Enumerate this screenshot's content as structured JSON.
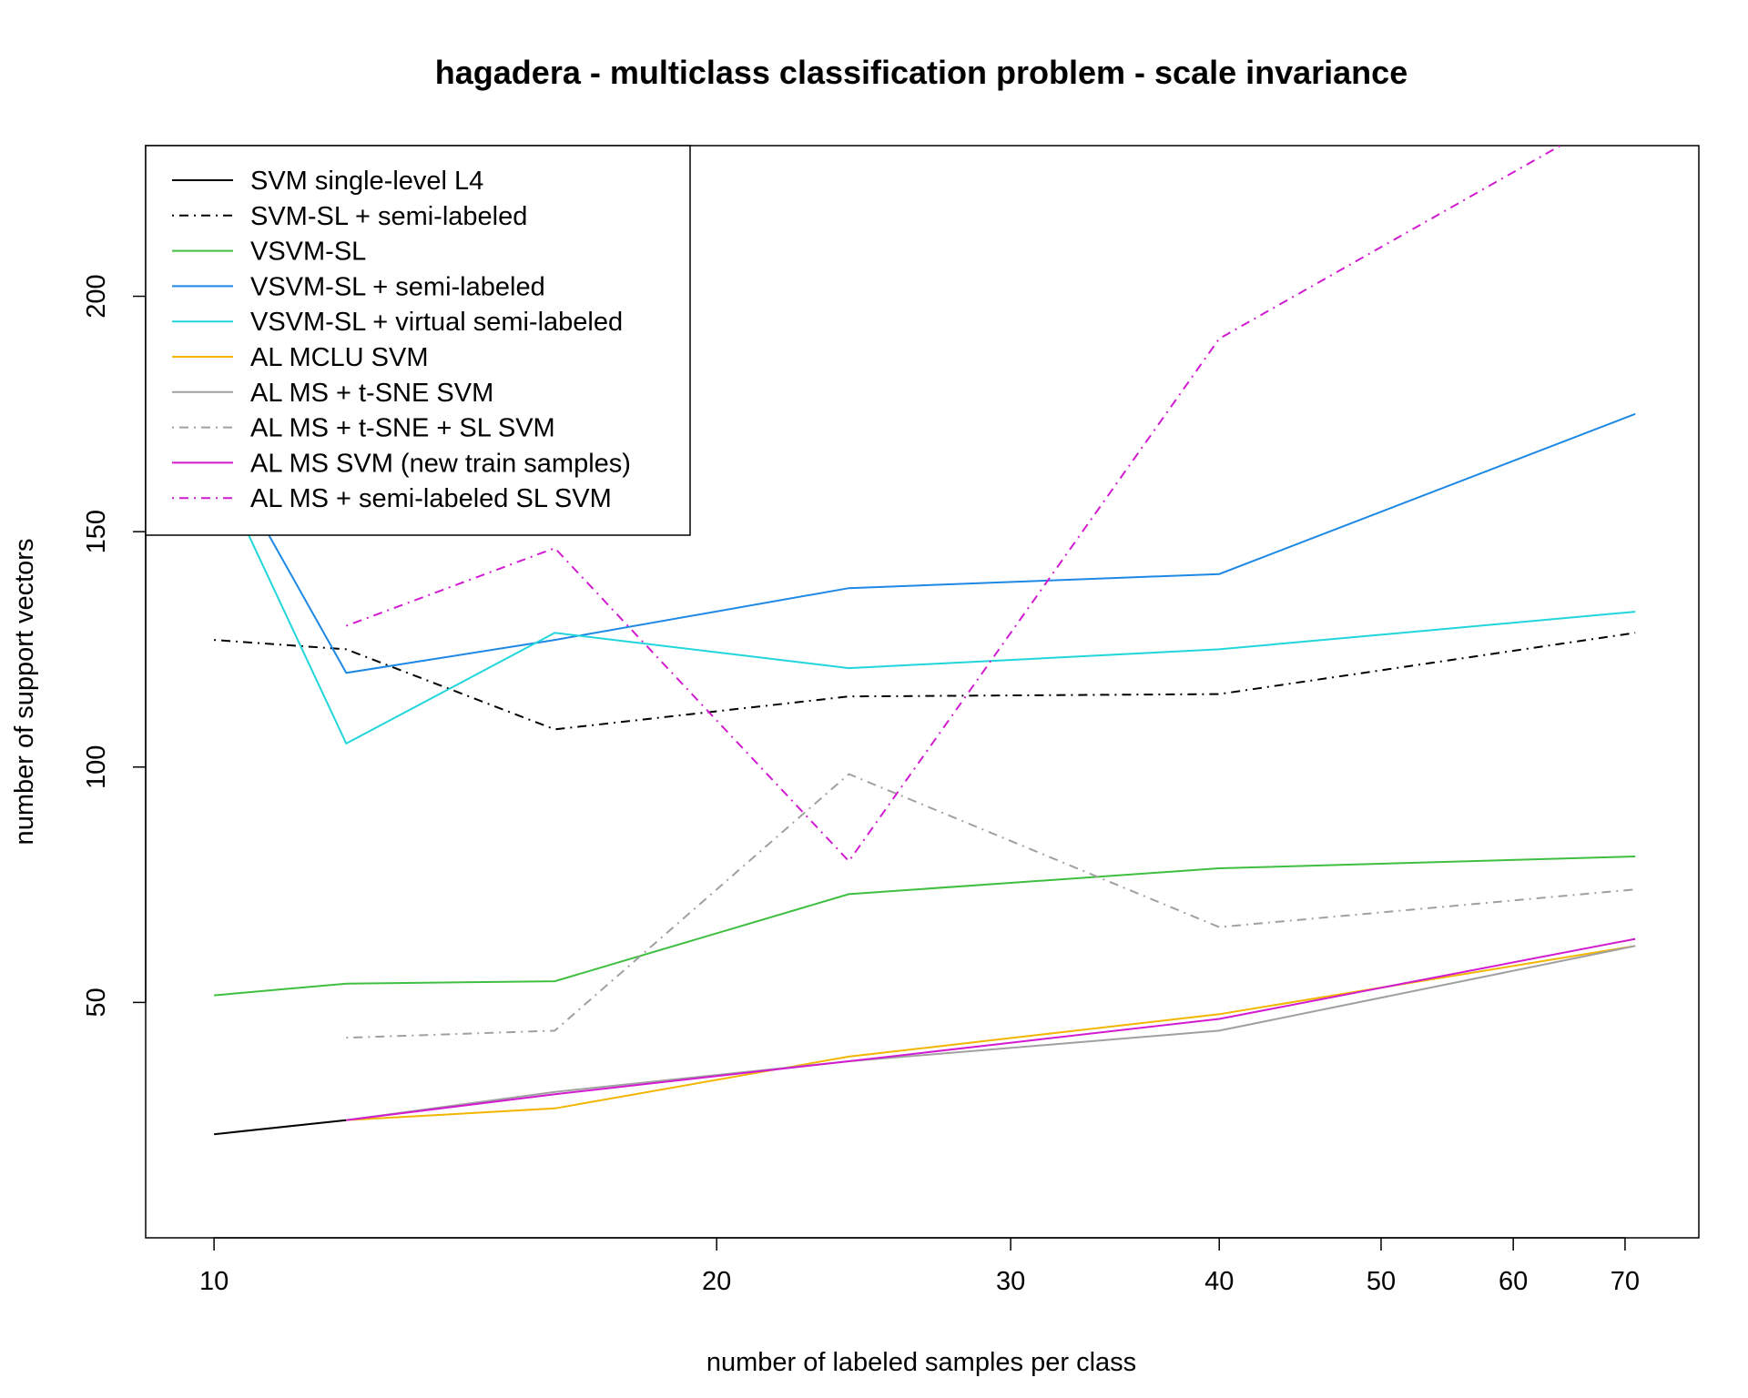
{
  "chart_data": {
    "type": "line",
    "title": "hagadera - multiclass classification problem - scale invariance",
    "xlabel": "number of labeled samples per class",
    "ylabel": "number of support vectors",
    "x_scale": "log",
    "xlim": [
      9.1,
      77.5
    ],
    "ylim": [
      0,
      232
    ],
    "x_ticks": [
      10,
      20,
      30,
      40,
      50,
      60,
      70
    ],
    "y_ticks": [
      50,
      100,
      150,
      200
    ],
    "grid": false,
    "legend_position": "top-left",
    "series": [
      {
        "name": "SVM single-level L4",
        "color": "#000000",
        "dash": "solid",
        "x": [
          10,
          12
        ],
        "y": [
          22,
          25
        ]
      },
      {
        "name": "SVM-SL + semi-labeled",
        "color": "#000000",
        "dash": "dotdash",
        "x": [
          10,
          12,
          16,
          24,
          40,
          71
        ],
        "y": [
          127,
          125,
          108,
          115,
          115.5,
          128.5
        ]
      },
      {
        "name": "VSVM-SL",
        "color": "#3fbf3f",
        "dash": "solid",
        "x": [
          10,
          12,
          16,
          24,
          40,
          71
        ],
        "y": [
          51.5,
          54,
          54.5,
          73,
          78.5,
          81
        ]
      },
      {
        "name": "VSVM-SL + semi-labeled",
        "color": "#1e88e5",
        "dash": "solid",
        "x": [
          10,
          12,
          16,
          24,
          40,
          71
        ],
        "y": [
          170,
          120,
          127,
          138,
          141,
          175
        ]
      },
      {
        "name": "VSVM-SL + virtual semi-labeled",
        "color": "#21d6db",
        "dash": "solid",
        "x": [
          10,
          12,
          16,
          24,
          40,
          71
        ],
        "y": [
          165,
          105,
          128.5,
          121,
          125,
          133
        ]
      },
      {
        "name": "AL MCLU SVM",
        "color": "#f2b500",
        "dash": "solid",
        "x": [
          12,
          16,
          24,
          40,
          71
        ],
        "y": [
          25,
          27.5,
          38.5,
          47.5,
          62
        ]
      },
      {
        "name": "AL MS + t-SNE SVM",
        "color": "#a0a0a0",
        "dash": "solid",
        "x": [
          12,
          16,
          24,
          40,
          71
        ],
        "y": [
          25,
          31,
          37.5,
          44,
          62
        ]
      },
      {
        "name": "AL MS + t-SNE + SL SVM",
        "color": "#a0a0a0",
        "dash": "dotdash",
        "x": [
          12,
          16,
          24,
          40,
          71
        ],
        "y": [
          42.5,
          44,
          98.5,
          66,
          74
        ]
      },
      {
        "name": "AL MS SVM (new train samples)",
        "color": "#d21bd0",
        "dash": "solid",
        "x": [
          12,
          16,
          24,
          40,
          71
        ],
        "y": [
          25,
          30.5,
          37.5,
          46.5,
          63.5
        ]
      },
      {
        "name": "AL MS + semi-labeled SL SVM",
        "color": "#d21bd0",
        "dash": "dotdash",
        "x": [
          12,
          16,
          24,
          40,
          71
        ],
        "y": [
          130,
          146.5,
          80,
          191,
          241
        ]
      }
    ]
  }
}
